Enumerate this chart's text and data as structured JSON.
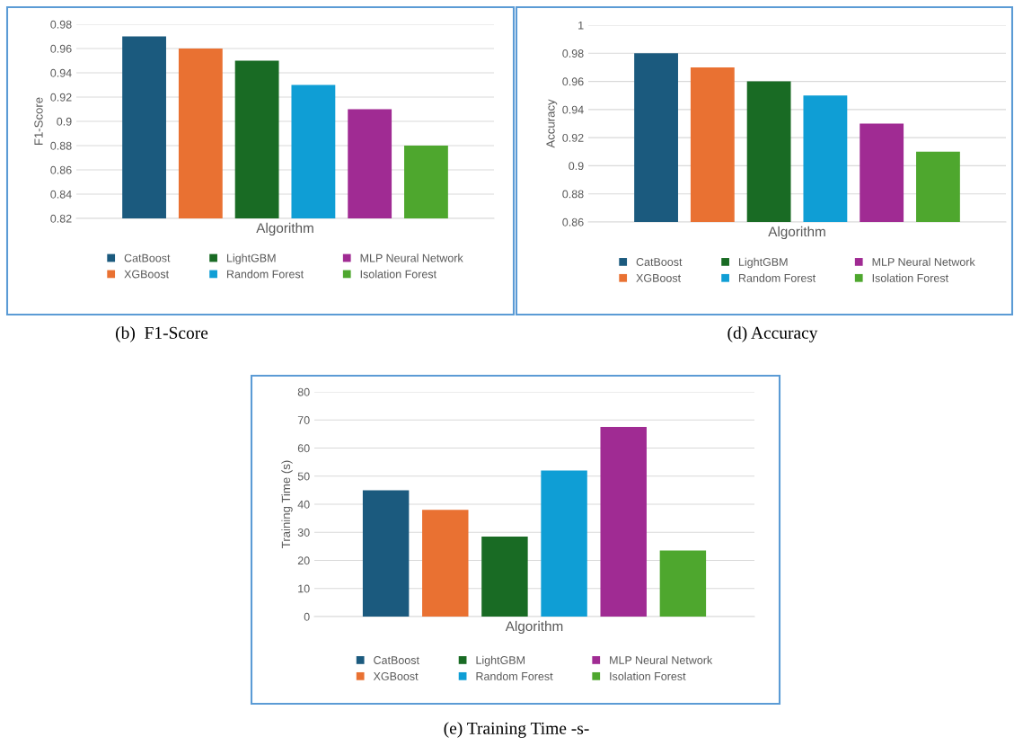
{
  "chart_data": [
    {
      "type": "bar",
      "categories": [
        "Algorithm"
      ],
      "ylabel": "F1-Score",
      "ylim": [
        0.82,
        0.98
      ],
      "yticks": [
        0.82,
        0.84,
        0.86,
        0.88,
        0.9,
        0.92,
        0.94,
        0.96,
        0.98
      ],
      "grid": "y",
      "legend": "bottom",
      "annotations": [
        "(b)  F1-Score"
      ],
      "series": [
        {
          "name": "CatBoost",
          "color": "#1b5a7e",
          "values": [
            0.97
          ]
        },
        {
          "name": "XGBoost",
          "color": "#e97132",
          "values": [
            0.96
          ]
        },
        {
          "name": "LightGBM",
          "color": "#196b24",
          "values": [
            0.95
          ]
        },
        {
          "name": "Random Forest",
          "color": "#0f9ed5",
          "values": [
            0.93
          ]
        },
        {
          "name": "MLP Neural Network",
          "color": "#a02b93",
          "values": [
            0.91
          ]
        },
        {
          "name": "Isolation Forest",
          "color": "#4ea72e",
          "values": [
            0.88
          ]
        }
      ]
    },
    {
      "type": "bar",
      "categories": [
        "Algorithm"
      ],
      "ylabel": "Accuracy",
      "ylim": [
        0.86,
        1
      ],
      "yticks": [
        0.86,
        0.88,
        0.9,
        0.92,
        0.94,
        0.96,
        0.98,
        1
      ],
      "grid": "y",
      "legend": "bottom",
      "annotations": [
        "(d) Accuracy"
      ],
      "series": [
        {
          "name": "CatBoost",
          "color": "#1b5a7e",
          "values": [
            0.98
          ]
        },
        {
          "name": "XGBoost",
          "color": "#e97132",
          "values": [
            0.97
          ]
        },
        {
          "name": "LightGBM",
          "color": "#196b24",
          "values": [
            0.96
          ]
        },
        {
          "name": "Random Forest",
          "color": "#0f9ed5",
          "values": [
            0.95
          ]
        },
        {
          "name": "MLP Neural Network",
          "color": "#a02b93",
          "values": [
            0.93
          ]
        },
        {
          "name": "Isolation Forest",
          "color": "#4ea72e",
          "values": [
            0.91
          ]
        }
      ]
    },
    {
      "type": "bar",
      "categories": [
        "Algorithm"
      ],
      "ylabel": "Training Time (s)",
      "ylim": [
        0,
        80
      ],
      "yticks": [
        0,
        10,
        20,
        30,
        40,
        50,
        60,
        70,
        80
      ],
      "grid": "y",
      "legend": "bottom",
      "annotations": [
        "(e) Training Time -s-"
      ],
      "series": [
        {
          "name": "CatBoost",
          "color": "#1b5a7e",
          "values": [
            45
          ]
        },
        {
          "name": "XGBoost",
          "color": "#e97132",
          "values": [
            38
          ]
        },
        {
          "name": "LightGBM",
          "color": "#196b24",
          "values": [
            28.5
          ]
        },
        {
          "name": "Random Forest",
          "color": "#0f9ed5",
          "values": [
            52
          ]
        },
        {
          "name": "MLP Neural Network",
          "color": "#a02b93",
          "values": [
            67.5
          ]
        },
        {
          "name": "Isolation Forest",
          "color": "#4ea72e",
          "values": [
            23.5
          ]
        }
      ]
    }
  ]
}
